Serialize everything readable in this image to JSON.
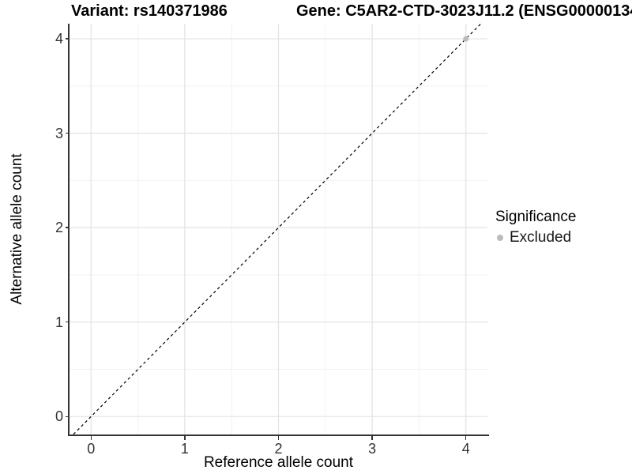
{
  "chart_data": {
    "type": "scatter",
    "title_left": "Variant: rs140371986",
    "title_right": "Gene: C5AR2-CTD-3023J11.2 (ENSG00000134",
    "title_right_truncated": true,
    "xlabel": "Reference allele count",
    "ylabel": "Alternative allele count",
    "xlim": [
      -0.23,
      4.23
    ],
    "ylim": [
      -0.19,
      4.16
    ],
    "xticks": [
      0,
      1,
      2,
      3,
      4
    ],
    "yticks": [
      0,
      1,
      2,
      3,
      4
    ],
    "minor_grid_step": 0.5,
    "grid": true,
    "legend_position": "right",
    "identity_line": {
      "slope": 1,
      "intercept": 0,
      "style": "dashed",
      "color": "#000000"
    },
    "legend": {
      "title": "Significance",
      "items": [
        {
          "label": "Excluded",
          "color": "#bcbcbc"
        }
      ]
    },
    "series": [
      {
        "name": "Excluded",
        "color": "#bcbcbc",
        "points": [
          {
            "x": 4,
            "y": 4
          }
        ]
      }
    ],
    "colors": {
      "grid_major": "#e4e4e4",
      "grid_minor": "#f2f2f2",
      "axis_line": "#333333",
      "background": "#ffffff"
    }
  }
}
